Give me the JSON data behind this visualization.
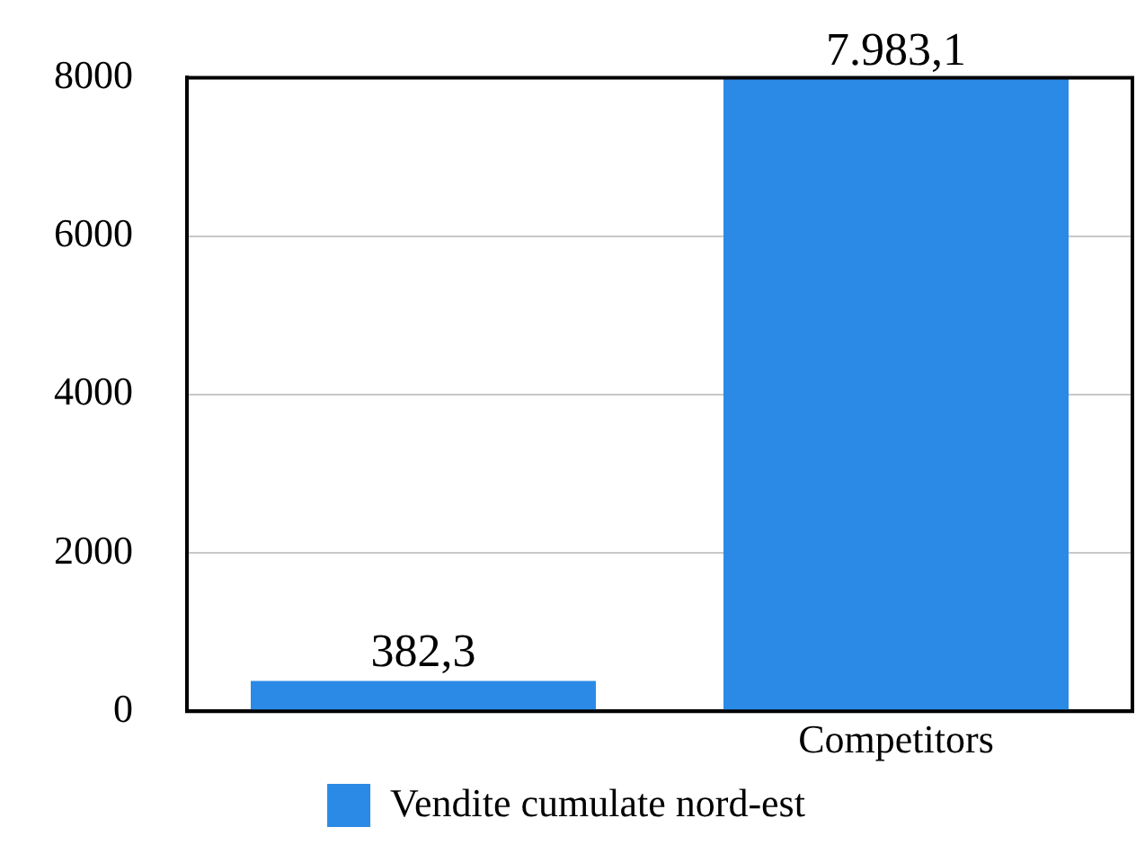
{
  "chart_data": {
    "type": "bar",
    "categories": [
      null,
      "Competitors"
    ],
    "series": [
      {
        "name": "Vendite cumulate nord-est",
        "color": "#2b8ae6",
        "values": [
          382.3,
          7983.1
        ],
        "value_labels": [
          "382,3",
          "7.983,1"
        ]
      }
    ],
    "ylim": [
      0,
      8000
    ],
    "yticks": [
      0,
      2000,
      4000,
      6000,
      8000
    ],
    "grid": "y",
    "legend": "bottom"
  }
}
